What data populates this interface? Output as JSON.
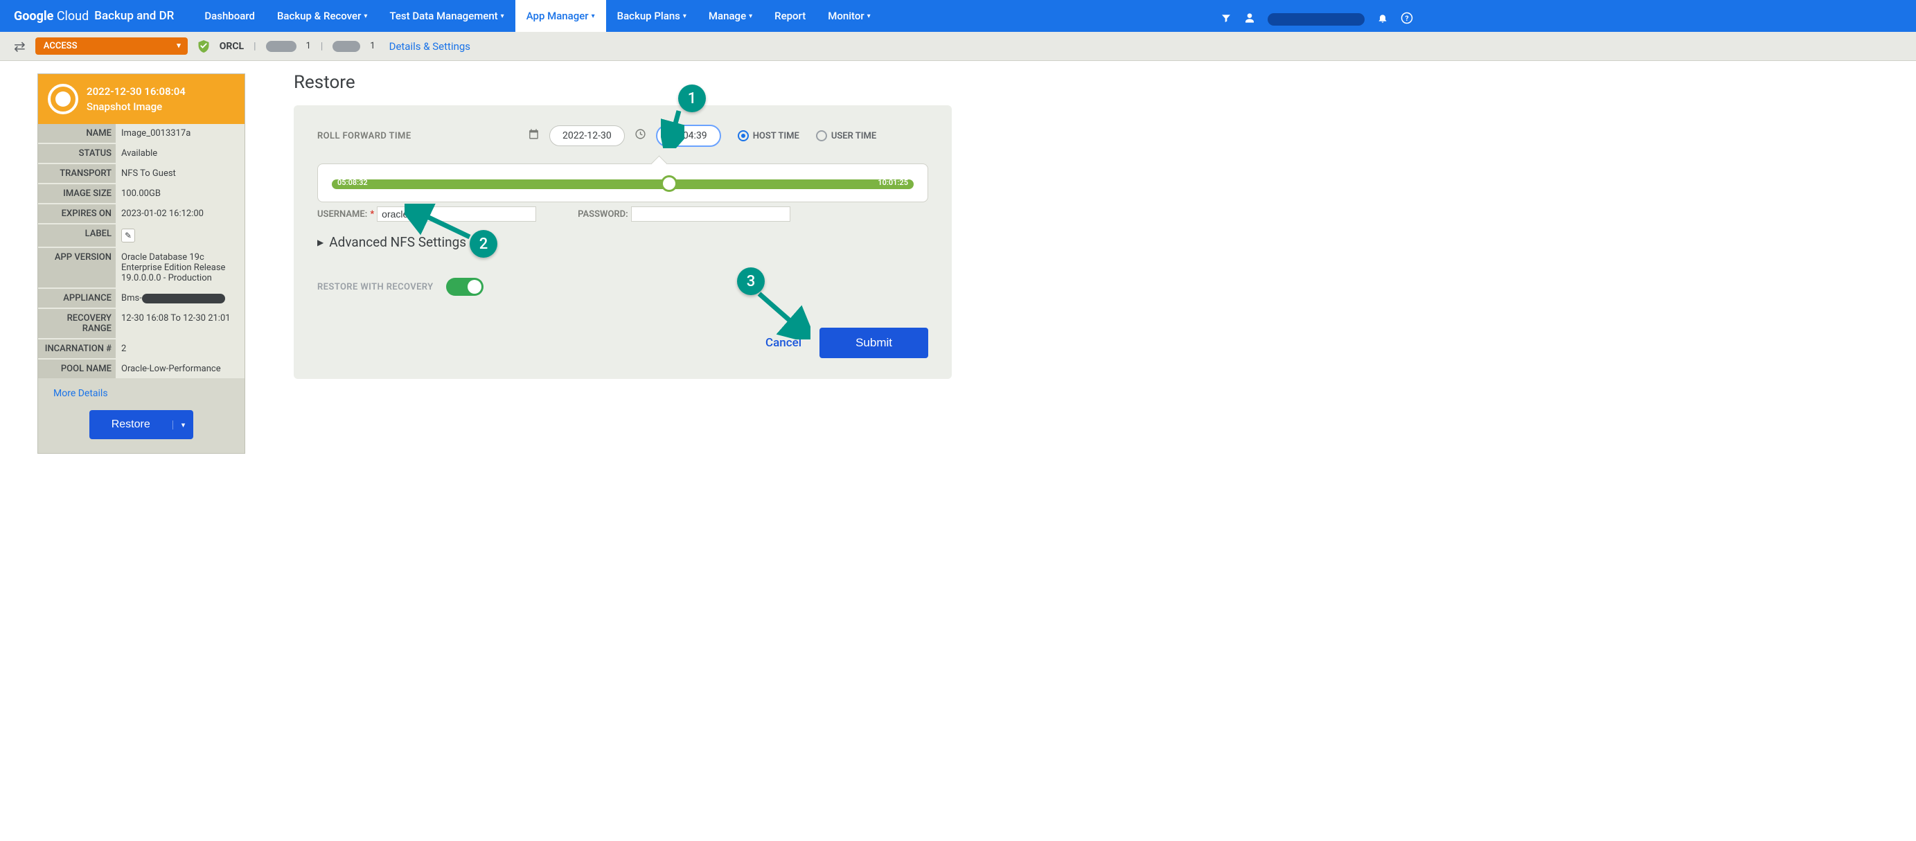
{
  "topbar": {
    "logo_bold": "Google",
    "logo_rest": " Cloud",
    "product": "Backup and DR",
    "items": [
      {
        "label": "Dashboard",
        "caret": false,
        "active": false
      },
      {
        "label": "Backup & Recover",
        "caret": true,
        "active": false
      },
      {
        "label": "Test Data Management",
        "caret": true,
        "active": false
      },
      {
        "label": "App Manager",
        "caret": true,
        "active": true
      },
      {
        "label": "Backup Plans",
        "caret": true,
        "active": false
      },
      {
        "label": "Manage",
        "caret": true,
        "active": false
      },
      {
        "label": "Report",
        "caret": false,
        "active": false
      },
      {
        "label": "Monitor",
        "caret": true,
        "active": false
      }
    ]
  },
  "subbar": {
    "access": "ACCESS",
    "db": "ORCL",
    "details": "Details & Settings"
  },
  "snapshot": {
    "timestamp": "2022-12-30  16:08:04",
    "subtitle": "Snapshot Image",
    "rows": [
      {
        "k": "NAME",
        "v": "Image_0013317a"
      },
      {
        "k": "STATUS",
        "v": "Available"
      },
      {
        "k": "TRANSPORT",
        "v": "NFS To Guest"
      },
      {
        "k": "IMAGE SIZE",
        "v": "100.00GB"
      },
      {
        "k": "EXPIRES ON",
        "v": "2023-01-02 16:12:00"
      },
      {
        "k": "LABEL",
        "v": "__edit__"
      },
      {
        "k": "APP VERSION",
        "v": "Oracle Database 19c Enterprise Edition Release 19.0.0.0.0 - Production"
      },
      {
        "k": "APPLIANCE",
        "v": "Bms-"
      },
      {
        "k": "RECOVERY RANGE",
        "v": "12-30 16:08 To 12-30 21:01"
      },
      {
        "k": "INCARNATION #",
        "v": "2"
      },
      {
        "k": "POOL NAME",
        "v": "Oracle-Low-Performance"
      }
    ],
    "more": "More Details",
    "restore": "Restore"
  },
  "page_title": "Restore",
  "rollfwd": {
    "label": "ROLL FORWARD TIME",
    "date": "2022-12-30",
    "time": "08:04:39",
    "radio_host": "HOST TIME",
    "radio_user": "USER TIME",
    "slider_start": "05:08:32",
    "slider_end": "10:01:25",
    "handle_pct": 58
  },
  "creds": {
    "user_label": "USERNAME:",
    "user_value": "oracle",
    "pass_label": "PASSWORD:"
  },
  "advanced": "Advanced NFS Settings",
  "rwr_label": "RESTORE WITH RECOVERY",
  "cancel": "Cancel",
  "submit": "Submit",
  "callouts": {
    "c1": "1",
    "c2": "2",
    "c3": "3"
  },
  "colors": {
    "accent": "#1a73e8",
    "orange": "#e8710a",
    "green": "#7cb342",
    "teal": "#009688"
  }
}
